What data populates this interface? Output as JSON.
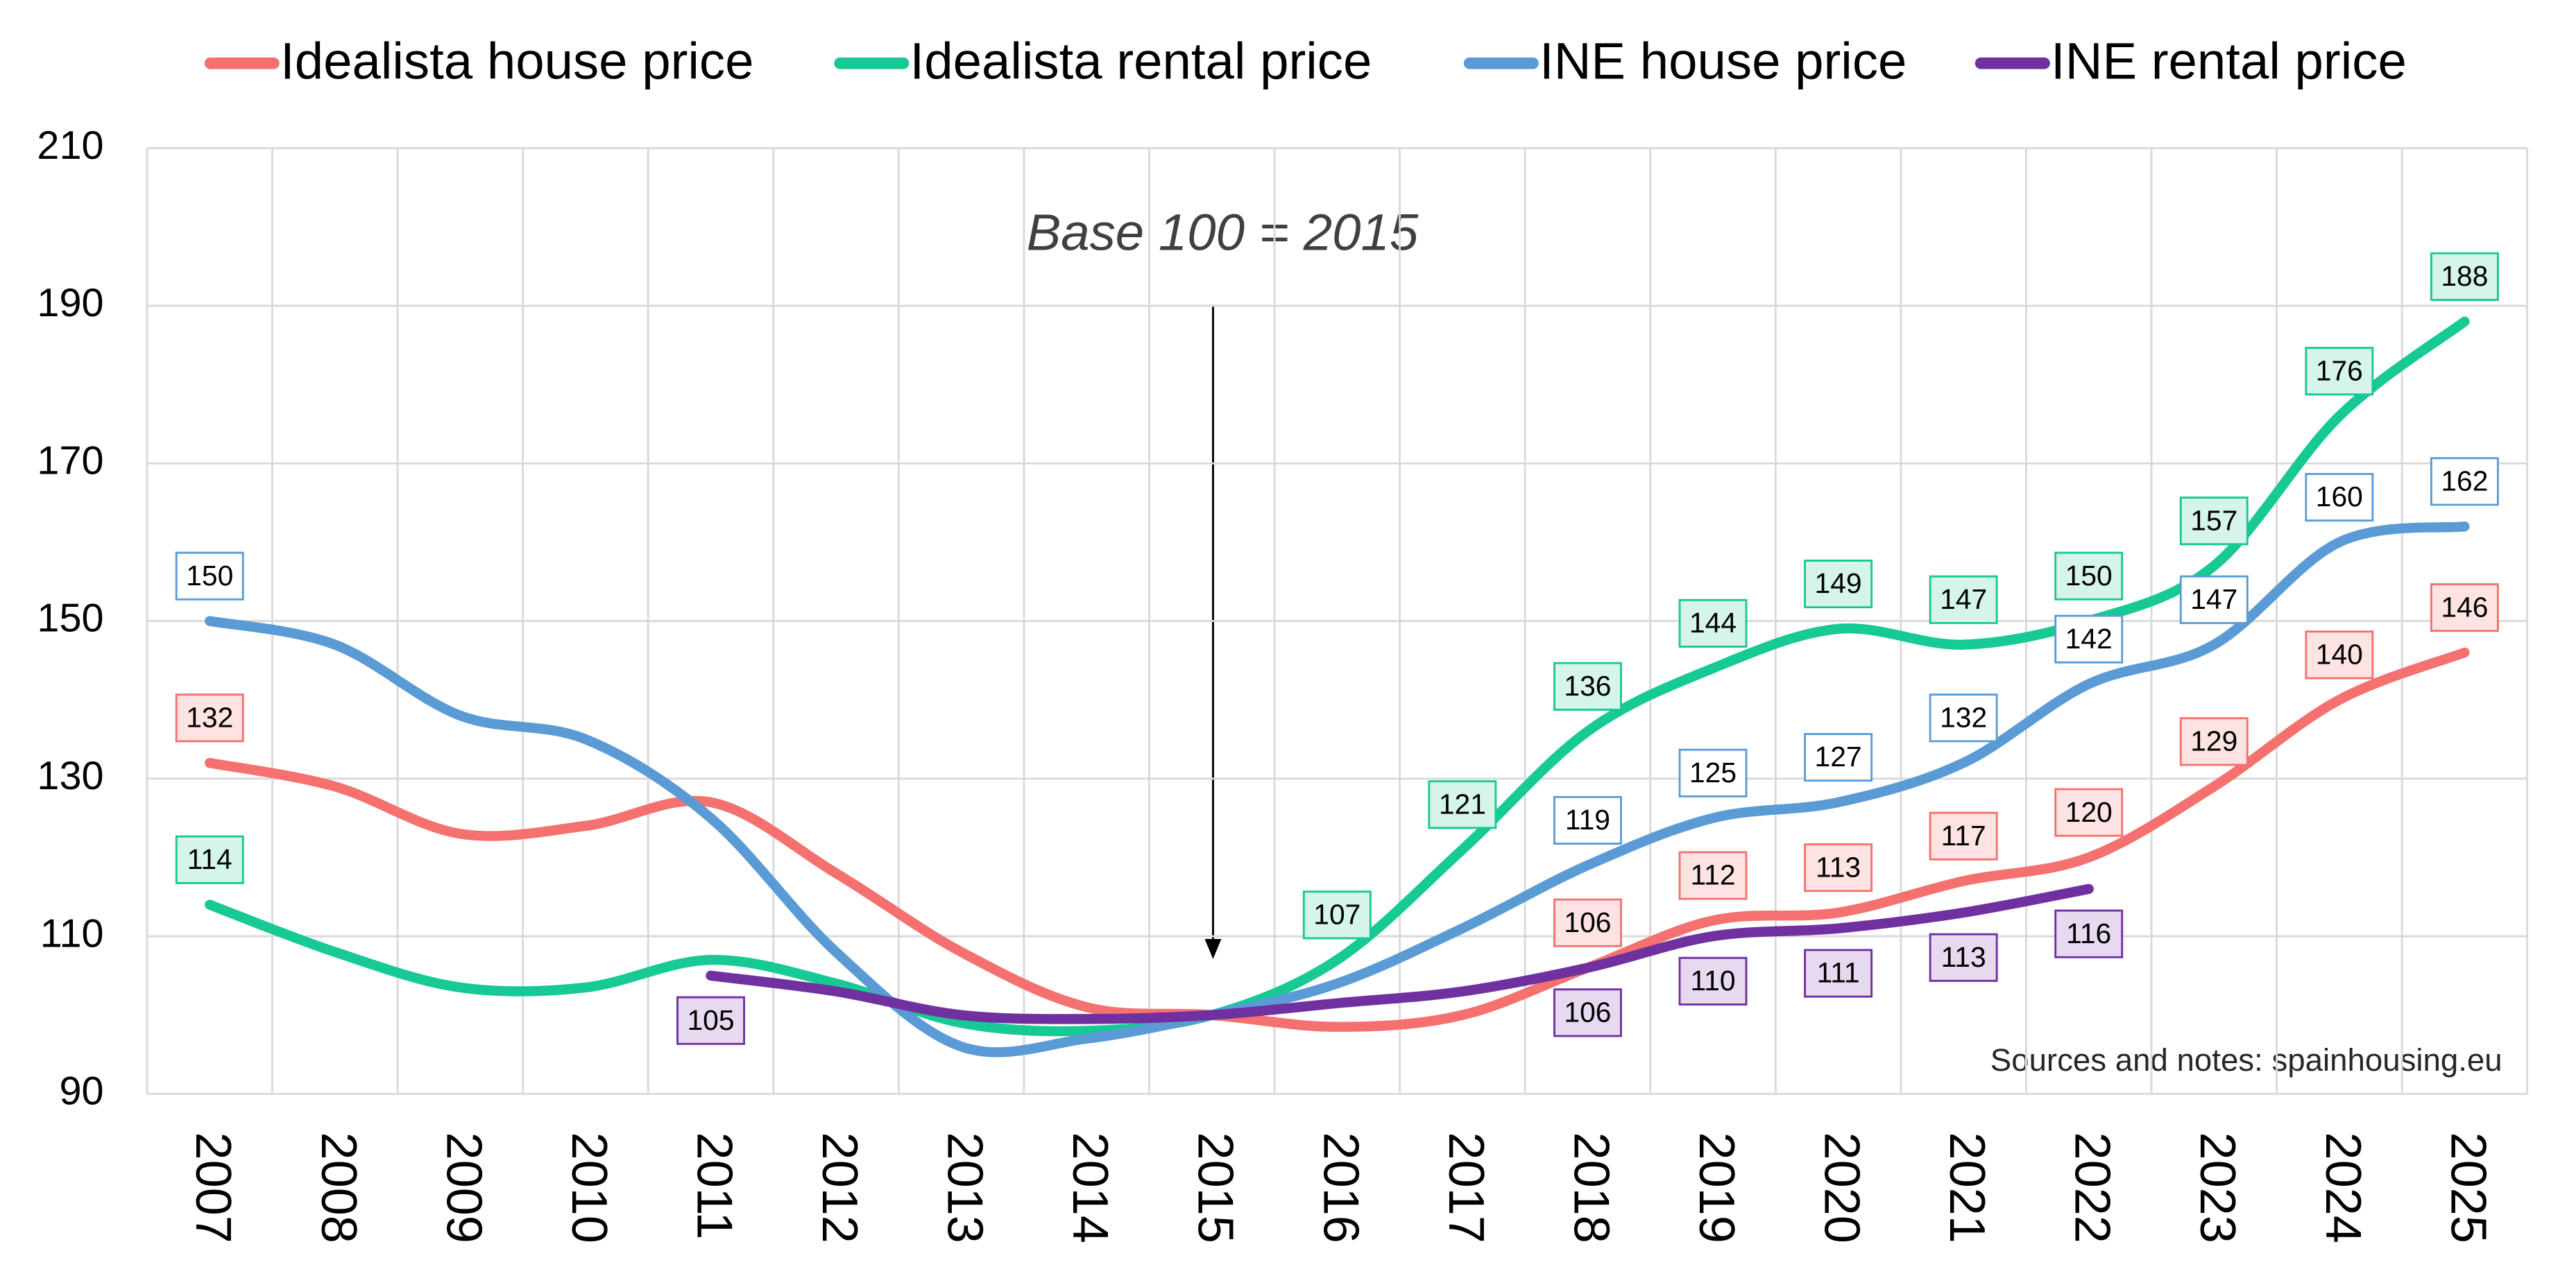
{
  "chart_data": {
    "type": "line",
    "annotation": "Base 100 = 2015",
    "source": "Sources and notes: spainhousing.eu",
    "categories": [
      "2007",
      "2008",
      "2009",
      "2010",
      "2011",
      "2012",
      "2013",
      "2014",
      "2015",
      "2016",
      "2017",
      "2018",
      "2019",
      "2020",
      "2021",
      "2022",
      "2023",
      "2024",
      "2025"
    ],
    "series": [
      {
        "name": "Idealista house price",
        "color": "#f4716f",
        "label_fill": "#fde3e2",
        "values": [
          132,
          129,
          123,
          124,
          127,
          118,
          108,
          101,
          100,
          98.5,
          100,
          106,
          112,
          113,
          117,
          120,
          129,
          140,
          146
        ],
        "value_labels": [
          "132",
          null,
          null,
          null,
          null,
          null,
          null,
          null,
          null,
          null,
          null,
          "106",
          "112",
          "113",
          "117",
          "120",
          "129",
          "140",
          "146"
        ]
      },
      {
        "name": "Idealista rental price",
        "color": "#17c994",
        "label_fill": "#d5f5ea",
        "values": [
          114,
          108,
          103.5,
          103.5,
          107,
          104,
          99,
          98,
          100,
          107,
          121,
          136,
          144,
          149,
          147,
          150,
          157,
          176,
          188
        ],
        "value_labels": [
          "114",
          null,
          null,
          null,
          null,
          null,
          null,
          null,
          null,
          "107",
          "121",
          "136",
          "144",
          "149",
          "147",
          "150",
          "157",
          "176",
          "188"
        ]
      },
      {
        "name": "INE house price",
        "color": "#5b9bd5",
        "label_fill": "#ffffff",
        "values": [
          150,
          147,
          138,
          135,
          125,
          108,
          96,
          97,
          100,
          104,
          111,
          119,
          125,
          127,
          132,
          142,
          147,
          160,
          162
        ],
        "value_labels": [
          "150",
          null,
          null,
          null,
          null,
          null,
          null,
          null,
          null,
          null,
          null,
          "119",
          "125",
          "127",
          "132",
          "142",
          "147",
          "160",
          "162"
        ]
      },
      {
        "name": "INE rental price",
        "color": "#7030a0",
        "label_fill": "#e6d9f0",
        "labels_below": true,
        "values": [
          null,
          null,
          null,
          null,
          105,
          103,
          100,
          99.5,
          100,
          101.5,
          103,
          106,
          110,
          111,
          113,
          116,
          null,
          null,
          null
        ],
        "value_labels": [
          null,
          null,
          null,
          null,
          "105",
          null,
          null,
          null,
          null,
          null,
          null,
          "106",
          "110",
          "111",
          "113",
          "116",
          null,
          null,
          null
        ]
      }
    ],
    "ylim": [
      90,
      210
    ],
    "yticks": [
      90,
      110,
      130,
      150,
      170,
      190,
      210
    ],
    "grid": true,
    "legend": "top"
  }
}
